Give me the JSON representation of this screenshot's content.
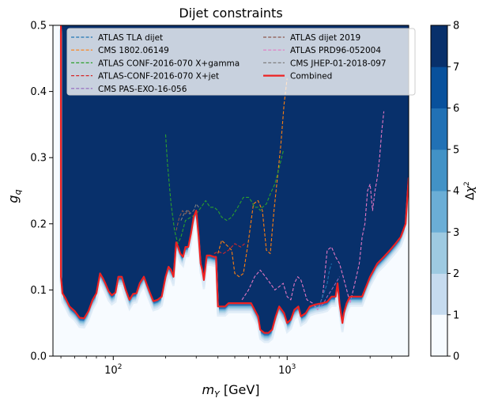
{
  "chart_data": {
    "type": "heatmap",
    "title": "Dijet constraints",
    "xlabel": "m_Y [GeV]",
    "ylabel": "g_q",
    "x_scale": "log",
    "xlim": [
      45,
      5000
    ],
    "ylim": [
      0,
      0.5
    ],
    "x_ticks": [
      {
        "value": 100,
        "base": "10",
        "exp": "2"
      },
      {
        "value": 1000,
        "base": "10",
        "exp": "3"
      }
    ],
    "y_ticks": [
      0.0,
      0.1,
      0.2,
      0.3,
      0.4,
      0.5
    ],
    "colorbar": {
      "label": "Δχ²",
      "range": [
        0,
        8
      ],
      "ticks": [
        0,
        1,
        2,
        3,
        4,
        5,
        6,
        7,
        8
      ],
      "colors": [
        "#f7fbff",
        "#deebf7",
        "#c6dbef",
        "#9ecae1",
        "#6baed6",
        "#4292c6",
        "#2171b5",
        "#08519c",
        "#08306b"
      ]
    },
    "legend": {
      "placement": "top",
      "entries": [
        {
          "name": "ATLAS TLA dijet",
          "color": "#1f77b4",
          "dashed": true
        },
        {
          "name": "CMS 1802.06149",
          "color": "#ff7f0e",
          "dashed": true
        },
        {
          "name": "ATLAS CONF-2016-070 X+gamma",
          "color": "#2ca02c",
          "dashed": true
        },
        {
          "name": "ATLAS-CONF-2016-070 X+jet",
          "color": "#d62728",
          "dashed": true
        },
        {
          "name": "CMS PAS-EXO-16-056",
          "color": "#9467bd",
          "dashed": true
        },
        {
          "name": "ATLAS dijet 2019",
          "color": "#8c564b",
          "dashed": true
        },
        {
          "name": "ATLAS PRD96-052004",
          "color": "#e377c2",
          "dashed": true
        },
        {
          "name": "CMS JHEP-01-2018-097",
          "color": "#7f7f7f",
          "dashed": true
        },
        {
          "name": "Combined",
          "color": "#ee2222",
          "dashed": false
        }
      ]
    },
    "series": [
      {
        "name": "Combined",
        "color": "#ee2222",
        "dashed": false,
        "width": 2.2,
        "x": [
          50,
          50,
          51,
          53,
          56,
          60,
          64,
          68,
          72,
          76,
          80,
          84,
          87,
          90,
          94,
          98,
          103,
          107,
          112,
          118,
          124,
          130,
          136,
          142,
          150,
          160,
          170,
          180,
          190,
          200,
          208,
          215,
          222,
          230,
          236,
          243,
          252,
          260,
          270,
          280,
          290,
          300,
          310,
          318,
          325,
          330,
          332,
          345,
          360,
          380,
          390,
          400,
          420,
          430,
          440,
          460,
          500,
          560,
          620,
          680,
          700,
          740,
          780,
          820,
          860,
          900,
          960,
          1000,
          1050,
          1100,
          1160,
          1200,
          1280,
          1350,
          1450,
          1600,
          1700,
          1800,
          1900,
          1950,
          2000,
          2050,
          2080,
          2120,
          2200,
          2300,
          2500,
          2700,
          3000,
          3300,
          3600,
          3900,
          4200,
          4500,
          4800,
          5000
        ],
        "y": [
          0.5,
          0.12,
          0.095,
          0.088,
          0.075,
          0.068,
          0.058,
          0.057,
          0.068,
          0.085,
          0.095,
          0.125,
          0.118,
          0.11,
          0.098,
          0.092,
          0.096,
          0.12,
          0.12,
          0.1,
          0.085,
          0.094,
          0.095,
          0.11,
          0.12,
          0.1,
          0.083,
          0.085,
          0.09,
          0.12,
          0.135,
          0.13,
          0.12,
          0.172,
          0.165,
          0.155,
          0.15,
          0.165,
          0.165,
          0.185,
          0.21,
          0.22,
          0.18,
          0.14,
          0.13,
          0.12,
          0.115,
          0.152,
          0.152,
          0.15,
          0.15,
          0.075,
          0.075,
          0.075,
          0.075,
          0.08,
          0.08,
          0.08,
          0.08,
          0.06,
          0.04,
          0.035,
          0.035,
          0.04,
          0.06,
          0.075,
          0.065,
          0.05,
          0.055,
          0.07,
          0.075,
          0.06,
          0.065,
          0.075,
          0.078,
          0.08,
          0.082,
          0.09,
          0.09,
          0.11,
          0.08,
          0.06,
          0.05,
          0.065,
          0.08,
          0.09,
          0.09,
          0.09,
          0.12,
          0.14,
          0.15,
          0.16,
          0.17,
          0.18,
          0.2,
          0.27
        ]
      },
      {
        "name": "ATLAS CONF-2016-070 X+gamma",
        "color": "#2ca02c",
        "dashed": true,
        "width": 1.1,
        "x": [
          200,
          205,
          215,
          225,
          235,
          245,
          260,
          280,
          300,
          320,
          340,
          360,
          380,
          400,
          420,
          450,
          480,
          520,
          560,
          600,
          620,
          650,
          680,
          700,
          720,
          760,
          800,
          850,
          900,
          950
        ],
        "y": [
          0.335,
          0.29,
          0.23,
          0.19,
          0.17,
          0.18,
          0.205,
          0.21,
          0.215,
          0.225,
          0.235,
          0.225,
          0.225,
          0.22,
          0.21,
          0.205,
          0.21,
          0.225,
          0.24,
          0.24,
          0.235,
          0.225,
          0.225,
          0.22,
          0.225,
          0.23,
          0.245,
          0.26,
          0.285,
          0.31
        ]
      },
      {
        "name": "CMS 1802.06149",
        "color": "#ff7f0e",
        "dashed": true,
        "width": 1.1,
        "x": [
          400,
          420,
          440,
          460,
          480,
          500,
          530,
          560,
          600,
          640,
          680,
          720,
          760,
          800,
          840,
          880,
          920,
          960,
          1000
        ],
        "y": [
          0.155,
          0.175,
          0.17,
          0.165,
          0.16,
          0.125,
          0.12,
          0.125,
          0.175,
          0.23,
          0.235,
          0.22,
          0.16,
          0.155,
          0.22,
          0.27,
          0.32,
          0.38,
          0.42
        ]
      },
      {
        "name": "ATLAS-CONF-2016-070 X+jet",
        "color": "#d62728",
        "dashed": true,
        "width": 1.1,
        "x": [
          380,
          400,
          430,
          460,
          500,
          540,
          570
        ],
        "y": [
          0.155,
          0.158,
          0.155,
          0.16,
          0.17,
          0.165,
          0.17
        ]
      },
      {
        "name": "ATLAS dijet 2019",
        "color": "#8c564b",
        "dashed": true,
        "width": 1.1,
        "x": [
          230,
          240,
          250,
          260,
          270,
          280
        ],
        "y": [
          0.19,
          0.21,
          0.22,
          0.215,
          0.22,
          0.215
        ]
      },
      {
        "name": "CMS JHEP-01-2018-097",
        "color": "#7f7f7f",
        "dashed": true,
        "width": 1.1,
        "x": [
          245,
          255,
          265,
          275,
          290,
          300,
          310
        ],
        "y": [
          0.205,
          0.215,
          0.22,
          0.215,
          0.22,
          0.23,
          0.225
        ]
      },
      {
        "name": "ATLAS TLA dijet",
        "color": "#1f77b4",
        "dashed": true,
        "width": 1.1,
        "x": [
          1500,
          1550,
          1600,
          1650,
          1700,
          1750,
          1800
        ],
        "y": [
          0.075,
          0.08,
          0.09,
          0.1,
          0.11,
          0.13,
          0.14
        ]
      },
      {
        "name": "CMS PAS-EXO-16-056",
        "color": "#9467bd",
        "dashed": true,
        "width": 1.1,
        "x": [
          1500,
          1560,
          1620,
          1700,
          1800,
          1900,
          2000
        ],
        "y": [
          0.08,
          0.075,
          0.08,
          0.09,
          0.1,
          0.11,
          0.12
        ]
      },
      {
        "name": "ATLAS PRD96-052004",
        "color": "#e377c2",
        "dashed": true,
        "width": 1.1,
        "x": [
          550,
          600,
          650,
          700,
          750,
          800,
          850,
          900,
          950,
          1000,
          1050,
          1100,
          1150,
          1200,
          1250,
          1300,
          1400,
          1500,
          1600,
          1700,
          1800,
          1900,
          2000,
          2100,
          2200,
          2300,
          2400,
          2500,
          2600,
          2700,
          2800,
          2900,
          3000,
          3100,
          3200,
          3300,
          3400,
          3500,
          3600
        ],
        "y": [
          0.085,
          0.1,
          0.12,
          0.13,
          0.12,
          0.11,
          0.1,
          0.105,
          0.11,
          0.09,
          0.085,
          0.11,
          0.12,
          0.115,
          0.1,
          0.085,
          0.08,
          0.07,
          0.09,
          0.16,
          0.165,
          0.15,
          0.14,
          0.12,
          0.1,
          0.08,
          0.1,
          0.12,
          0.14,
          0.18,
          0.2,
          0.25,
          0.26,
          0.22,
          0.25,
          0.27,
          0.3,
          0.34,
          0.37
        ]
      }
    ]
  }
}
